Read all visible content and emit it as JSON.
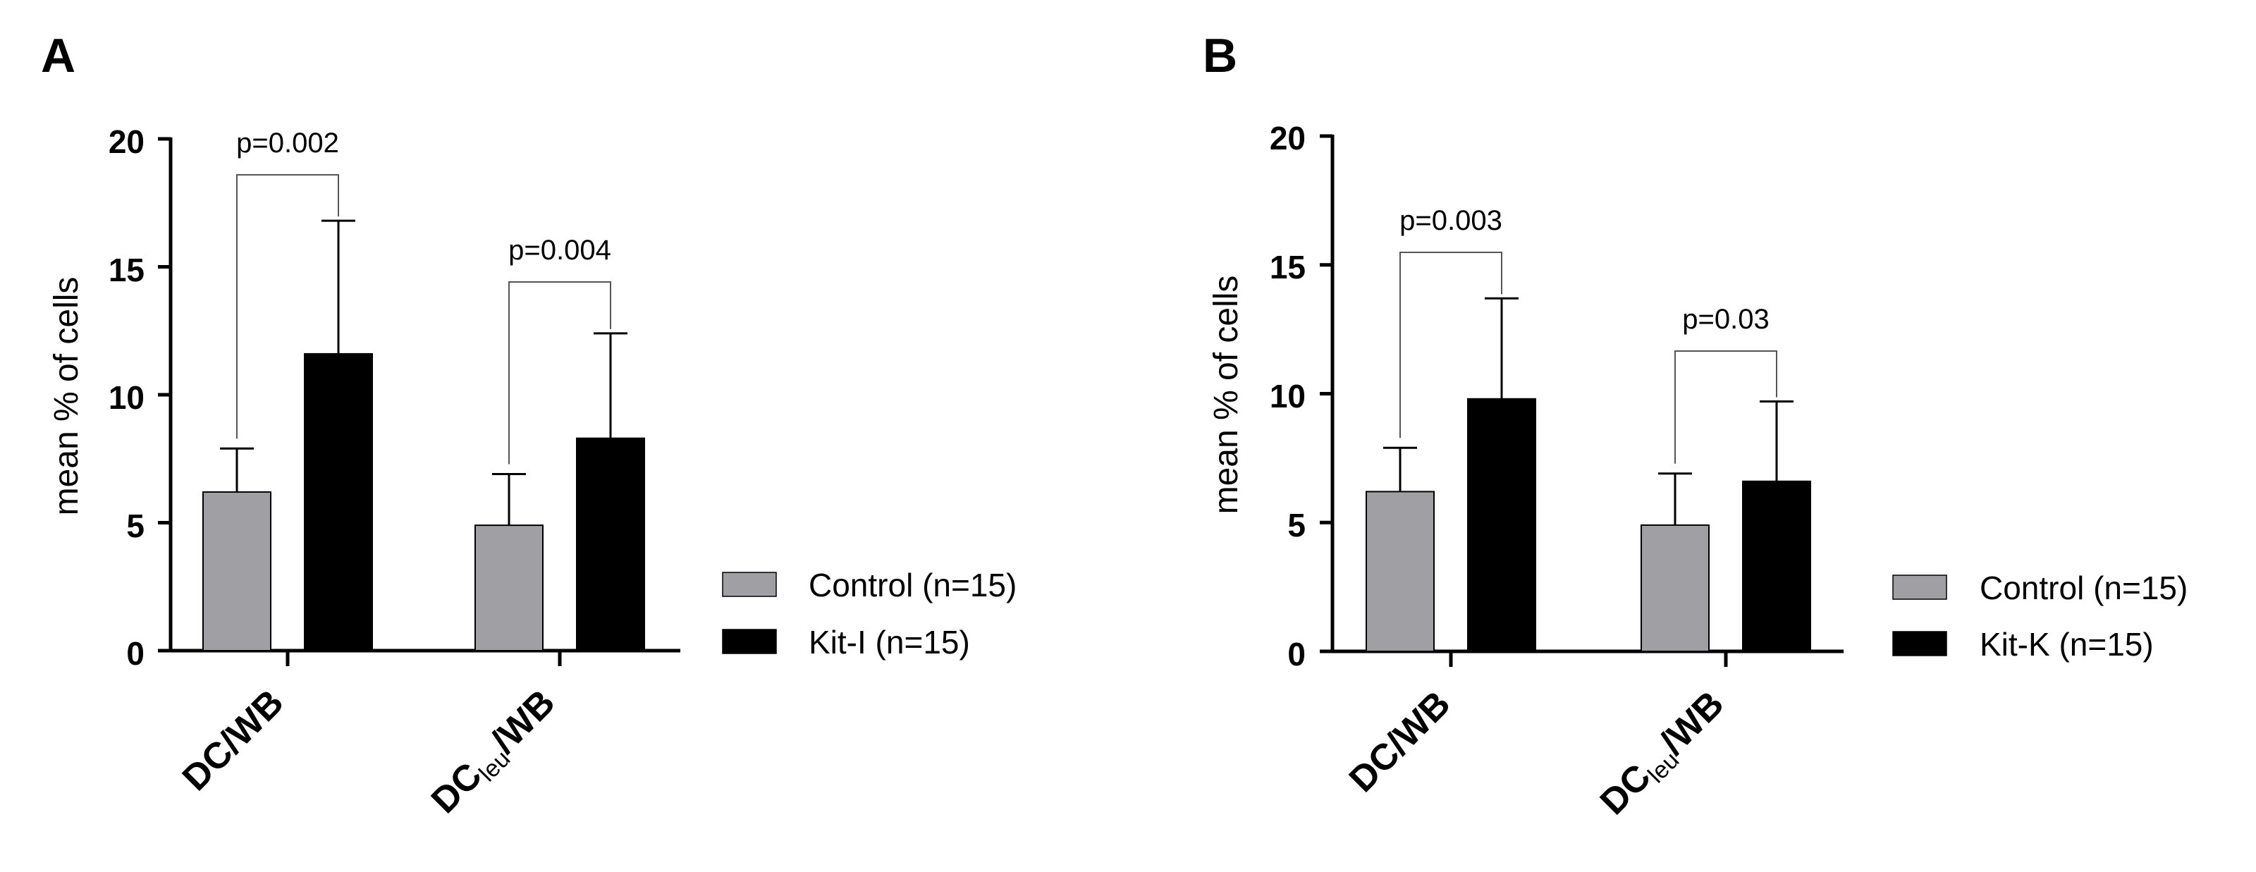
{
  "chart_data": [
    {
      "panel_label": "A",
      "type": "bar",
      "categories": [
        "DC/WB",
        "DC_leu/WB"
      ],
      "category_labels": [
        {
          "main": "DC/WB",
          "sub": "",
          "suffix": ""
        },
        {
          "main": "DC",
          "sub": "leu",
          "suffix": "/WB"
        }
      ],
      "ylabel": "mean % of cells",
      "ylim": [
        0,
        20
      ],
      "yticks": [
        "0",
        "5",
        "10",
        "15",
        "20"
      ],
      "series": [
        {
          "name": "Control (n=15)",
          "color": "#a0a0a4",
          "values": [
            6.2,
            4.9
          ],
          "sd": [
            1.7,
            2.0
          ]
        },
        {
          "name": "Kit-I (n=15)",
          "color": "#000000",
          "values": [
            11.6,
            8.3
          ],
          "sd": [
            5.2,
            4.1
          ]
        }
      ],
      "significance": [
        "p=0.002",
        "p=0.004"
      ],
      "legend_position": "right"
    },
    {
      "panel_label": "B",
      "type": "bar",
      "categories": [
        "DC/WB",
        "DC_leu/WB"
      ],
      "category_labels": [
        {
          "main": "DC/WB",
          "sub": "",
          "suffix": ""
        },
        {
          "main": "DC",
          "sub": "leu",
          "suffix": "/WB"
        }
      ],
      "ylabel": "mean % of cells",
      "ylim": [
        0,
        20
      ],
      "yticks": [
        "0",
        "5",
        "10",
        "15",
        "20"
      ],
      "series": [
        {
          "name": "Control (n=15)",
          "color": "#a0a0a4",
          "values": [
            6.2,
            4.9
          ],
          "sd": [
            1.7,
            2.0
          ]
        },
        {
          "name": "Kit-K (n=15)",
          "color": "#000000",
          "values": [
            9.8,
            6.6
          ],
          "sd": [
            3.9,
            3.1
          ]
        }
      ],
      "significance": [
        "p=0.003",
        "p=0.03"
      ],
      "legend_position": "right"
    }
  ]
}
